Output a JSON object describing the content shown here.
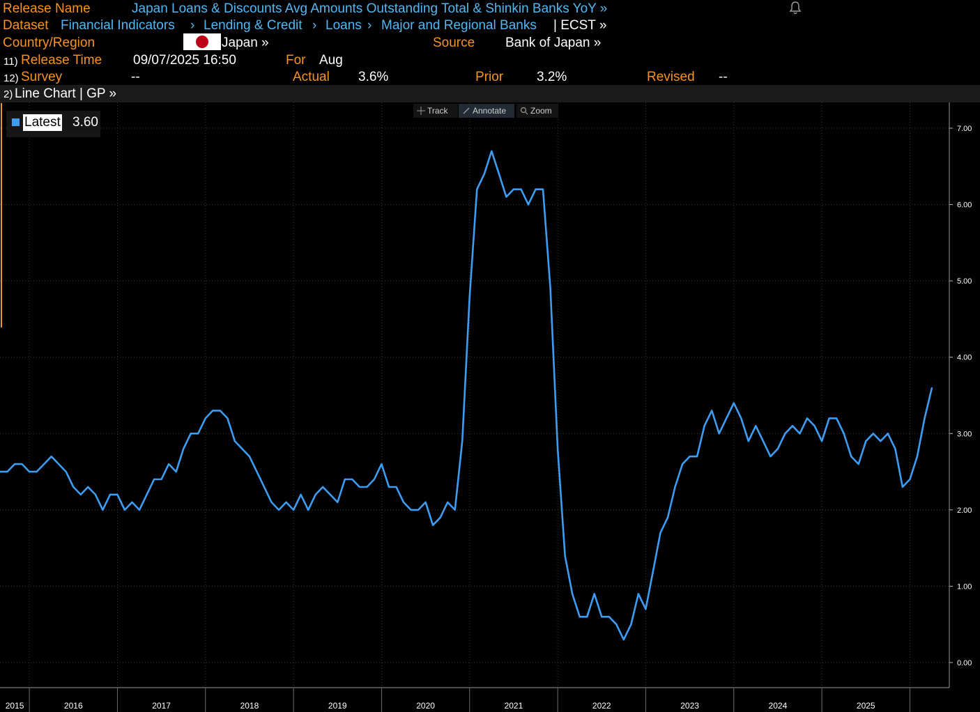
{
  "header": {
    "release_name_label": "Release Name",
    "release_name": "Japan Loans & Discounts Avg Amounts Outstanding Total & Shinkin Banks YoY »",
    "dataset_label": "Dataset",
    "dataset_path": [
      "Financial Indicators",
      "Lending & Credit",
      "Loans",
      "Major and Regional Banks"
    ],
    "dataset_suffix": "| ECST »",
    "country_label": "Country/Region",
    "country": "Japan »",
    "source_label": "Source",
    "source": "Bank of Japan »",
    "release_time_num": "11)",
    "release_time_label": "Release Time",
    "release_time": "09/07/2025 16:50",
    "for_label": "For",
    "for_value": "Aug",
    "survey_num": "12)",
    "survey_label": "Survey",
    "survey": "--",
    "actual_label": "Actual",
    "actual": "3.6%",
    "prior_label": "Prior",
    "prior": "3.2%",
    "revised_label": "Revised",
    "revised": "--"
  },
  "toolbar": {
    "num": "2)",
    "label": "Line Chart | GP »",
    "tools": [
      "Track",
      "Annotate",
      "Zoom"
    ]
  },
  "legend": {
    "label": "Latest",
    "value": "3.60"
  },
  "colors": {
    "accent": "#f7931e",
    "link": "#55b7f0",
    "series": "#3d9df3",
    "background": "#000000"
  },
  "chart_data": {
    "type": "line",
    "ylim": [
      0,
      7
    ],
    "yticks": [
      "0.00",
      "1.00",
      "2.00",
      "3.00",
      "4.00",
      "5.00",
      "6.00",
      "7.00"
    ],
    "xticks": [
      "2015",
      "2016",
      "2017",
      "2018",
      "2019",
      "2020",
      "2021",
      "2022",
      "2023",
      "2024",
      "2025"
    ],
    "x_start": "2014-09",
    "frequency": "monthly",
    "series": [
      {
        "name": "Latest",
        "values": [
          2.5,
          2.5,
          2.6,
          2.6,
          2.5,
          2.5,
          2.6,
          2.7,
          2.6,
          2.5,
          2.3,
          2.2,
          2.3,
          2.2,
          2.0,
          2.2,
          2.2,
          2.0,
          2.1,
          2.0,
          2.2,
          2.4,
          2.4,
          2.6,
          2.5,
          2.8,
          3.0,
          3.0,
          3.2,
          3.3,
          3.3,
          3.2,
          2.9,
          2.8,
          2.7,
          2.5,
          2.3,
          2.1,
          2.0,
          2.1,
          2.0,
          2.2,
          2.0,
          2.2,
          2.3,
          2.2,
          2.1,
          2.4,
          2.4,
          2.3,
          2.3,
          2.4,
          2.6,
          2.3,
          2.3,
          2.1,
          2.0,
          2.0,
          2.1,
          1.8,
          1.9,
          2.1,
          2.0,
          2.9,
          4.8,
          6.2,
          6.4,
          6.7,
          6.4,
          6.1,
          6.2,
          6.2,
          6.0,
          6.2,
          6.2,
          4.9,
          2.8,
          1.4,
          0.9,
          0.6,
          0.6,
          0.9,
          0.6,
          0.6,
          0.5,
          0.3,
          0.5,
          0.9,
          0.7,
          1.2,
          1.7,
          1.9,
          2.3,
          2.6,
          2.7,
          2.7,
          3.1,
          3.3,
          3.0,
          3.2,
          3.4,
          3.2,
          2.9,
          3.1,
          2.9,
          2.7,
          2.8,
          3.0,
          3.1,
          3.0,
          3.2,
          3.1,
          2.9,
          3.2,
          3.2,
          3.0,
          2.7,
          2.6,
          2.9,
          3.0,
          2.9,
          3.0,
          2.8,
          2.3,
          2.4,
          2.7,
          3.2,
          3.6
        ]
      }
    ]
  }
}
